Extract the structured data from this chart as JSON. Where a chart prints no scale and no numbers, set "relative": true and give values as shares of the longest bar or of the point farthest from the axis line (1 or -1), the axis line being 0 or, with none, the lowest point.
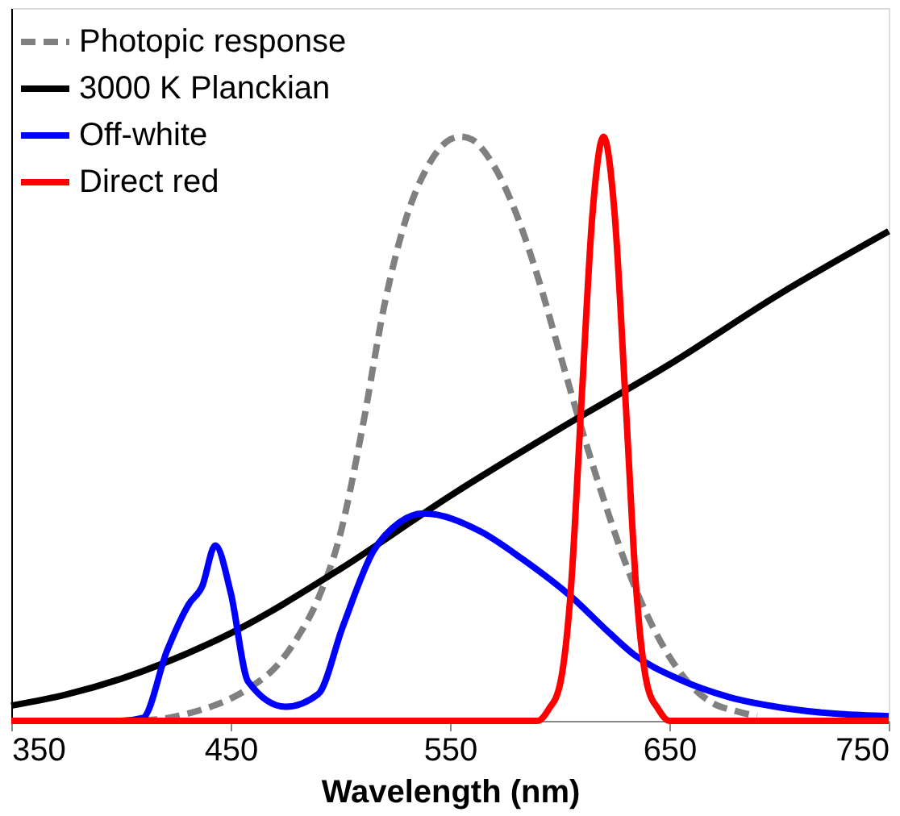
{
  "chart_data": {
    "type": "line",
    "relative": true,
    "xlabel": "Wavelength (nm)",
    "xlim": [
      350,
      750
    ],
    "xticks": [
      350,
      450,
      550,
      650,
      750
    ],
    "legend": "top left",
    "grid": false,
    "marker": "none",
    "series": [
      {
        "name": "Photopic response",
        "color": "#808080",
        "line_style": "dashed",
        "x": [
          410,
          420,
          430,
          440,
          450,
          460,
          470,
          480,
          490,
          500,
          510,
          520,
          530,
          540,
          550,
          555,
          560,
          570,
          580,
          590,
          600,
          610,
          620,
          630,
          640,
          650,
          660,
          670,
          680,
          690
        ],
        "values": [
          0.001,
          0.004,
          0.012,
          0.023,
          0.038,
          0.06,
          0.09,
          0.14,
          0.21,
          0.32,
          0.5,
          0.71,
          0.86,
          0.95,
          0.995,
          1,
          0.995,
          0.95,
          0.87,
          0.76,
          0.63,
          0.5,
          0.38,
          0.27,
          0.18,
          0.11,
          0.06,
          0.03,
          0.017,
          0.008
        ]
      },
      {
        "name": "3000 K Planckian",
        "color": "#000000",
        "line_style": "solid",
        "x": [
          350,
          375,
          400,
          450,
          500,
          550,
          600,
          650,
          700,
          750
        ],
        "values": [
          0.026,
          0.045,
          0.072,
          0.15,
          0.26,
          0.385,
          0.5,
          0.61,
          0.73,
          0.838
        ]
      },
      {
        "name": "Off-white",
        "color": "#0000ff",
        "line_style": "solid",
        "x": [
          350,
          400,
          410,
          421,
          431,
          437,
          443,
          450,
          458,
          475,
          490,
          501,
          515,
          527,
          538,
          564,
          583,
          606,
          620,
          634,
          654,
          677,
          706,
          750
        ],
        "values": [
          0,
          0,
          0.005,
          0.12,
          0.2,
          0.23,
          0.3,
          0.22,
          0.067,
          0.024,
          0.046,
          0.16,
          0.29,
          0.34,
          0.355,
          0.324,
          0.277,
          0.21,
          0.16,
          0.113,
          0.072,
          0.041,
          0.02,
          0.008
        ]
      },
      {
        "name": "Direct red",
        "color": "#ff0000",
        "line_style": "solid",
        "x": [
          350,
          590,
          595,
          600,
          605,
          610,
          615,
          620,
          625,
          630,
          635,
          640,
          645,
          650,
          750
        ],
        "values": [
          0,
          0,
          0.02,
          0.06,
          0.22,
          0.55,
          0.87,
          1,
          0.87,
          0.55,
          0.22,
          0.06,
          0.02,
          0,
          0
        ]
      }
    ]
  }
}
